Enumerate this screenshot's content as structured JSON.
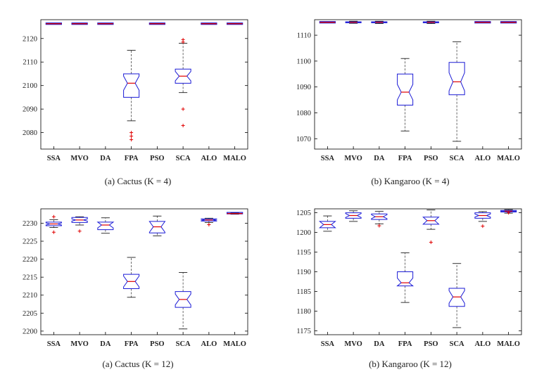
{
  "chart_data": [
    {
      "type": "boxplot",
      "caption": "(a) Cactus (K = 4)",
      "categories": [
        "SSA",
        "MVO",
        "DA",
        "FPA",
        "PSO",
        "SCA",
        "ALO",
        "MALO"
      ],
      "ylim": [
        2073,
        2128
      ],
      "yticks": [
        2080,
        2090,
        2100,
        2110,
        2120
      ],
      "boxes": [
        {
          "name": "SSA",
          "wlo": 2126.3,
          "q1": 2126.3,
          "med": 2126.3,
          "q3": 2126.3,
          "whi": 2126.3,
          "notch": 0,
          "outliers": []
        },
        {
          "name": "MVO",
          "wlo": 2126.3,
          "q1": 2126.3,
          "med": 2126.3,
          "q3": 2126.3,
          "whi": 2126.3,
          "notch": 0,
          "outliers": []
        },
        {
          "name": "DA",
          "wlo": 2126.3,
          "q1": 2126.3,
          "med": 2126.3,
          "q3": 2126.3,
          "whi": 2126.3,
          "notch": 0,
          "outliers": []
        },
        {
          "name": "FPA",
          "wlo": 2085,
          "q1": 2095,
          "med": 2101,
          "q3": 2105,
          "whi": 2115,
          "notch": 3,
          "outliers": [
            2080,
            2078.5,
            2077
          ]
        },
        {
          "name": "PSO",
          "wlo": 2126.3,
          "q1": 2126.3,
          "med": 2126.3,
          "q3": 2126.3,
          "whi": 2126.3,
          "notch": 0,
          "outliers": []
        },
        {
          "name": "SCA",
          "wlo": 2097,
          "q1": 2101,
          "med": 2104,
          "q3": 2107,
          "whi": 2118,
          "notch": 2,
          "outliers": [
            2119.5,
            2118.5,
            2090,
            2083
          ]
        },
        {
          "name": "ALO",
          "wlo": 2126.3,
          "q1": 2126.3,
          "med": 2126.3,
          "q3": 2126.3,
          "whi": 2126.3,
          "notch": 0,
          "outliers": []
        },
        {
          "name": "MALO",
          "wlo": 2126.3,
          "q1": 2126.3,
          "med": 2126.3,
          "q3": 2126.3,
          "whi": 2126.3,
          "notch": 0,
          "outliers": []
        }
      ]
    },
    {
      "type": "boxplot",
      "caption": "(b) Kangaroo (K = 4)",
      "categories": [
        "SSA",
        "MVO",
        "DA",
        "FPA",
        "PSO",
        "SCA",
        "ALO",
        "MALO"
      ],
      "ylim": [
        1066,
        1116
      ],
      "yticks": [
        1070,
        1080,
        1090,
        1100,
        1110
      ],
      "boxes": [
        {
          "name": "SSA",
          "wlo": 1115,
          "q1": 1115,
          "med": 1115,
          "q3": 1115,
          "whi": 1115,
          "notch": 0,
          "outliers": []
        },
        {
          "name": "MVO",
          "wlo": 1114.6,
          "q1": 1114.8,
          "med": 1115,
          "q3": 1115.2,
          "whi": 1115.4,
          "notch": 0,
          "outliers": []
        },
        {
          "name": "DA",
          "wlo": 1114.5,
          "q1": 1114.8,
          "med": 1115,
          "q3": 1115.2,
          "whi": 1115.4,
          "notch": 0,
          "outliers": []
        },
        {
          "name": "FPA",
          "wlo": 1073,
          "q1": 1083,
          "med": 1088,
          "q3": 1095,
          "whi": 1101,
          "notch": 3,
          "outliers": []
        },
        {
          "name": "PSO",
          "wlo": 1114.5,
          "q1": 1114.8,
          "med": 1115,
          "q3": 1115.2,
          "whi": 1115.4,
          "notch": 0,
          "outliers": []
        },
        {
          "name": "SCA",
          "wlo": 1069,
          "q1": 1087,
          "med": 1092,
          "q3": 1099.5,
          "whi": 1107.5,
          "notch": 3.5,
          "outliers": []
        },
        {
          "name": "ALO",
          "wlo": 1115,
          "q1": 1115,
          "med": 1115,
          "q3": 1115,
          "whi": 1115,
          "notch": 0,
          "outliers": []
        },
        {
          "name": "MALO",
          "wlo": 1115,
          "q1": 1115,
          "med": 1115,
          "q3": 1115,
          "whi": 1115,
          "notch": 0,
          "outliers": []
        }
      ]
    },
    {
      "type": "boxplot",
      "caption": "(a) Cactus (K = 12)",
      "categories": [
        "SSA",
        "MVO",
        "DA",
        "FPA",
        "PSO",
        "SCA",
        "ALO",
        "MALO"
      ],
      "ylim": [
        2199,
        2234
      ],
      "yticks": [
        2200,
        2205,
        2210,
        2215,
        2220,
        2225,
        2230
      ],
      "boxes": [
        {
          "name": "SSA",
          "wlo": 2228.8,
          "q1": 2229.3,
          "med": 2229.8,
          "q3": 2230.3,
          "whi": 2231,
          "notch": 0.3,
          "outliers": [
            2231.8,
            2227.5
          ]
        },
        {
          "name": "MVO",
          "wlo": 2229.5,
          "q1": 2230.2,
          "med": 2230.9,
          "q3": 2231.6,
          "whi": 2231.8,
          "notch": 0.3,
          "outliers": [
            2227.8
          ]
        },
        {
          "name": "DA",
          "wlo": 2227.2,
          "q1": 2228.2,
          "med": 2229.5,
          "q3": 2230.3,
          "whi": 2231.5,
          "notch": 0.8,
          "outliers": []
        },
        {
          "name": "FPA",
          "wlo": 2209.4,
          "q1": 2211.8,
          "med": 2213.8,
          "q3": 2215.8,
          "whi": 2220.5,
          "notch": 1.5,
          "outliers": []
        },
        {
          "name": "PSO",
          "wlo": 2226.5,
          "q1": 2227.3,
          "med": 2229,
          "q3": 2230.5,
          "whi": 2232,
          "notch": 1.5,
          "outliers": []
        },
        {
          "name": "SCA",
          "wlo": 2200.6,
          "q1": 2206.6,
          "med": 2208.8,
          "q3": 2211,
          "whi": 2216.3,
          "notch": 1.5,
          "outliers": []
        },
        {
          "name": "ALO",
          "wlo": 2230.2,
          "q1": 2230.6,
          "med": 2230.9,
          "q3": 2231.2,
          "whi": 2231.4,
          "notch": 0.2,
          "outliers": [
            2229.6
          ]
        },
        {
          "name": "MALO",
          "wlo": 2232.5,
          "q1": 2232.6,
          "med": 2232.7,
          "q3": 2232.8,
          "whi": 2232.9,
          "notch": 0,
          "outliers": []
        }
      ]
    },
    {
      "type": "boxplot",
      "caption": "(b) Kangaroo (K = 12)",
      "categories": [
        "SSA",
        "MVO",
        "DA",
        "FPA",
        "PSO",
        "SCA",
        "ALO",
        "MALO"
      ],
      "ylim": [
        1174,
        1206
      ],
      "yticks": [
        1175,
        1180,
        1185,
        1190,
        1195,
        1200,
        1205
      ],
      "boxes": [
        {
          "name": "SSA",
          "wlo": 1200.3,
          "q1": 1201.2,
          "med": 1202,
          "q3": 1202.8,
          "whi": 1204.2,
          "notch": 0.8,
          "outliers": []
        },
        {
          "name": "MVO",
          "wlo": 1202.8,
          "q1": 1203.6,
          "med": 1204.3,
          "q3": 1205,
          "whi": 1205.5,
          "notch": 0.5,
          "outliers": []
        },
        {
          "name": "DA",
          "wlo": 1202.2,
          "q1": 1203.3,
          "med": 1204,
          "q3": 1204.7,
          "whi": 1205.4,
          "notch": 0.5,
          "outliers": [
            1201.7
          ]
        },
        {
          "name": "FPA",
          "wlo": 1182.2,
          "q1": 1186.4,
          "med": 1187.2,
          "q3": 1190,
          "whi": 1194.8,
          "notch": 1.2,
          "outliers": []
        },
        {
          "name": "PSO",
          "wlo": 1200.8,
          "q1": 1202.1,
          "med": 1203,
          "q3": 1203.9,
          "whi": 1205.7,
          "notch": 0.9,
          "outliers": [
            1197.5
          ]
        },
        {
          "name": "SCA",
          "wlo": 1175.8,
          "q1": 1181.2,
          "med": 1183.6,
          "q3": 1185.8,
          "whi": 1192.1,
          "notch": 1.6,
          "outliers": []
        },
        {
          "name": "ALO",
          "wlo": 1202.8,
          "q1": 1203.6,
          "med": 1204.3,
          "q3": 1205,
          "whi": 1205.3,
          "notch": 0.4,
          "outliers": [
            1201.6
          ]
        },
        {
          "name": "MALO",
          "wlo": 1204.9,
          "q1": 1205.2,
          "med": 1205.4,
          "q3": 1205.6,
          "whi": 1205.8,
          "notch": 0,
          "outliers": [
            1205
          ]
        }
      ]
    }
  ],
  "colors": {
    "box": "#1a1ad6",
    "median": "#e00000",
    "whisker": "#444444",
    "outlier": "#e00000",
    "axis": "#000000"
  }
}
